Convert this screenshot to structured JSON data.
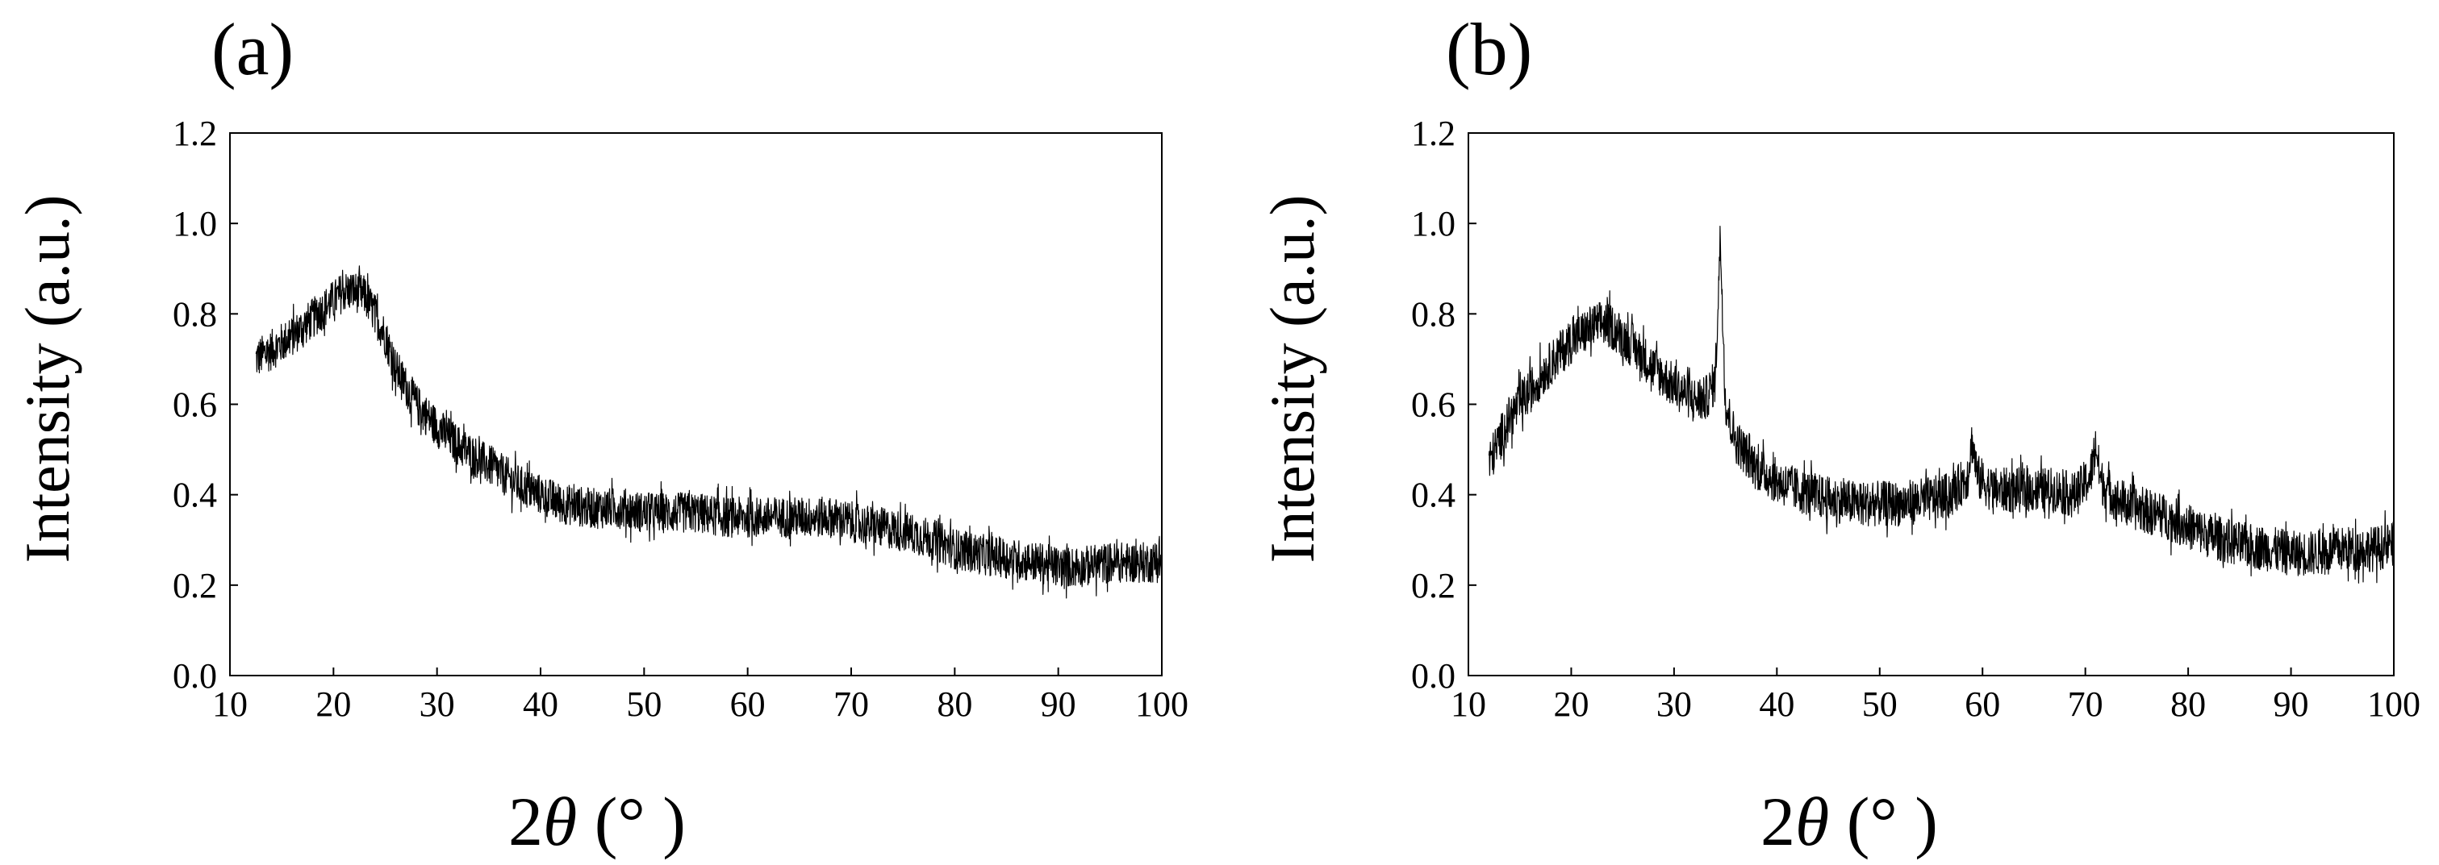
{
  "chart_data": [
    {
      "panel_label": "(a)",
      "type": "line",
      "xlabel": "2θ (°  )",
      "ylabel": "Intensity (a.u.)",
      "xlim": [
        10,
        100
      ],
      "ylim": [
        0.0,
        1.2
      ],
      "x_ticks": [
        "10",
        "20",
        "30",
        "40",
        "50",
        "60",
        "70",
        "80",
        "90",
        "100"
      ],
      "y_ticks": [
        "0.0",
        "0.2",
        "0.4",
        "0.6",
        "0.8",
        "1.0",
        "1.2"
      ],
      "grid": false,
      "series": [
        {
          "color": "#000000",
          "x": [
            12.5,
            14,
            16,
            18,
            20,
            21,
            22,
            23,
            24,
            25,
            26,
            28,
            30,
            32,
            34,
            36,
            38,
            40,
            42,
            45,
            48,
            50,
            52,
            55,
            58,
            60,
            62,
            65,
            68,
            70,
            72,
            75,
            78,
            80,
            82,
            85,
            88,
            90,
            92,
            95,
            98,
            100
          ],
          "values": [
            0.7,
            0.72,
            0.75,
            0.79,
            0.83,
            0.85,
            0.85,
            0.84,
            0.8,
            0.75,
            0.68,
            0.6,
            0.55,
            0.51,
            0.48,
            0.45,
            0.42,
            0.4,
            0.38,
            0.37,
            0.37,
            0.36,
            0.36,
            0.36,
            0.35,
            0.35,
            0.35,
            0.35,
            0.35,
            0.34,
            0.33,
            0.32,
            0.3,
            0.28,
            0.27,
            0.26,
            0.25,
            0.24,
            0.24,
            0.25,
            0.25,
            0.25
          ],
          "noise": 0.045
        }
      ]
    },
    {
      "panel_label": "(b)",
      "type": "line",
      "xlabel": "2θ (°  )",
      "ylabel": "Intensity (a.u.)",
      "xlim": [
        10,
        100
      ],
      "ylim": [
        0.0,
        1.2
      ],
      "x_ticks": [
        "10",
        "20",
        "30",
        "40",
        "50",
        "60",
        "70",
        "80",
        "90",
        "100"
      ],
      "y_ticks": [
        "0.0",
        "0.2",
        "0.4",
        "0.6",
        "0.8",
        "1.0",
        "1.2"
      ],
      "grid": false,
      "series": [
        {
          "color": "#000000",
          "x": [
            12,
            14,
            16,
            18,
            20,
            22,
            23,
            24,
            26,
            28,
            30,
            32,
            33,
            34,
            34.5,
            35,
            36,
            38,
            40,
            42,
            45,
            48,
            50,
            52,
            55,
            57,
            58.5,
            59,
            59.5,
            61,
            63,
            65,
            67,
            69,
            70.5,
            71,
            71.5,
            73,
            75,
            78,
            80,
            82,
            85,
            88,
            90,
            92,
            95,
            98,
            100
          ],
          "values": [
            0.47,
            0.57,
            0.63,
            0.69,
            0.74,
            0.77,
            0.78,
            0.77,
            0.73,
            0.68,
            0.64,
            0.61,
            0.61,
            0.65,
            0.97,
            0.6,
            0.52,
            0.46,
            0.43,
            0.41,
            0.39,
            0.38,
            0.38,
            0.38,
            0.39,
            0.4,
            0.44,
            0.52,
            0.44,
            0.41,
            0.41,
            0.41,
            0.41,
            0.4,
            0.44,
            0.51,
            0.43,
            0.39,
            0.37,
            0.35,
            0.33,
            0.31,
            0.29,
            0.28,
            0.27,
            0.27,
            0.28,
            0.28,
            0.29
          ],
          "noise": 0.05
        }
      ]
    }
  ]
}
